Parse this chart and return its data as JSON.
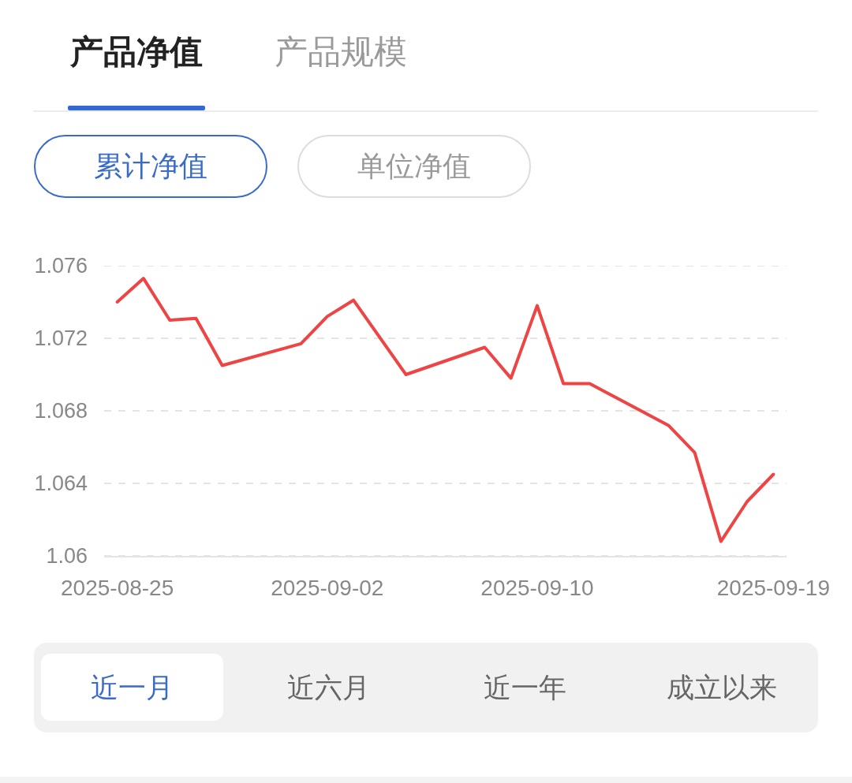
{
  "chart_data": {
    "type": "line",
    "annotations": [
      "产品净值",
      "产品规模",
      "累计净值",
      "单位净值",
      "近一月",
      "近六月",
      "近一年",
      "成立以来"
    ],
    "x": [
      "2025-08-25",
      "2025-08-26",
      "2025-08-27",
      "2025-08-28",
      "2025-08-29",
      "2025-09-01",
      "2025-09-02",
      "2025-09-03",
      "2025-09-05",
      "2025-09-08",
      "2025-09-09",
      "2025-09-10",
      "2025-09-11",
      "2025-09-12",
      "2025-09-15",
      "2025-09-16",
      "2025-09-17",
      "2025-09-18",
      "2025-09-19"
    ],
    "series": [
      {
        "color": "#ee4444",
        "values": [
          1.074,
          1.0753,
          1.073,
          1.0731,
          1.0705,
          1.0717,
          1.0732,
          1.0741,
          1.07,
          1.0715,
          1.0698,
          1.0738,
          1.0695,
          1.0695,
          1.0672,
          1.0657,
          1.0608,
          1.063,
          1.0645
        ]
      }
    ],
    "xlim": [
      "2025-08-24T12:00",
      "2025-09-19T12:00"
    ],
    "xticks": [
      {
        "value": "2025-08-25",
        "label": "2025-08-25"
      },
      {
        "value": "2025-09-02",
        "label": "2025-09-02"
      },
      {
        "value": "2025-09-10",
        "label": "2025-09-10"
      },
      {
        "value": "2025-09-19",
        "label": "2025-09-19"
      }
    ],
    "ylim": [
      1.06,
      1.076
    ],
    "yticks": [
      1.06,
      1.064,
      1.068,
      1.072,
      1.076
    ],
    "grid": "y",
    "line_style": "solid"
  }
}
